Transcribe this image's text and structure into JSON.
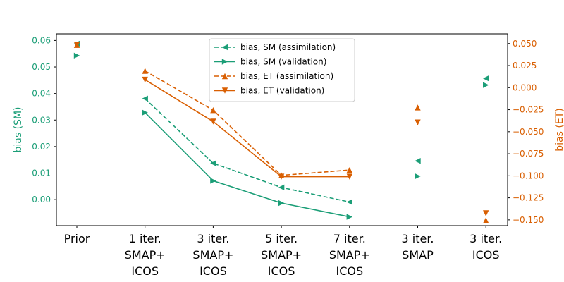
{
  "chart_data": {
    "type": "line",
    "categories": [
      [
        "Prior"
      ],
      [
        "1 iter.",
        "SMAP+",
        "ICOS"
      ],
      [
        "3 iter.",
        "SMAP+",
        "ICOS"
      ],
      [
        "5 iter.",
        "SMAP+",
        "ICOS"
      ],
      [
        "7 iter.",
        "SMAP+",
        "ICOS"
      ],
      [
        "3 iter.",
        "SMAP"
      ],
      [
        "3 iter.",
        "ICOS"
      ]
    ],
    "ylabel_left": "bias (SM)",
    "ylabel_right": "bias (ET)",
    "ylim_left": [
      -0.0098,
      0.0625
    ],
    "ylim_right": [
      -0.1565,
      0.061
    ],
    "yticks_left": [
      "0.00",
      "0.01",
      "0.02",
      "0.03",
      "0.04",
      "0.05",
      "0.06"
    ],
    "yticks_left_values": [
      0.0,
      0.01,
      0.02,
      0.03,
      0.04,
      0.05,
      0.06
    ],
    "yticks_right": [
      "0.050",
      "0.025",
      "0.000",
      "−0.025",
      "−0.050",
      "−0.075",
      "−0.100",
      "−0.125",
      "−0.150"
    ],
    "yticks_right_values": [
      0.05,
      0.025,
      0.0,
      -0.025,
      -0.05,
      -0.075,
      -0.1,
      -0.125,
      -0.15
    ],
    "colors": {
      "sm": "#1b9e77",
      "et": "#d95f02"
    },
    "legend_position": "top-center",
    "series": [
      {
        "name": "bias, SM (assimilation)",
        "axis": "left",
        "color": "#1b9e77",
        "dash": true,
        "marker": "triangle-left",
        "values": [
          0.0588,
          0.0381,
          0.0137,
          0.0046,
          -0.0009,
          0.0146,
          0.0457
        ],
        "connected": [
          false,
          true,
          true,
          true,
          true,
          false,
          false
        ]
      },
      {
        "name": "bias, SM (validation)",
        "axis": "left",
        "color": "#1b9e77",
        "dash": false,
        "marker": "triangle-right",
        "values": [
          0.0543,
          0.0328,
          0.0071,
          -0.0013,
          -0.0065,
          0.0088,
          0.0432
        ],
        "connected": [
          false,
          true,
          true,
          true,
          true,
          false,
          false
        ]
      },
      {
        "name": "bias, ET (assimilation)",
        "axis": "right",
        "color": "#d95f02",
        "dash": true,
        "marker": "triangle-up",
        "values": [
          0.0485,
          0.019,
          -0.0255,
          -0.0995,
          -0.0935,
          -0.0225,
          -0.1505
        ],
        "connected": [
          false,
          true,
          true,
          true,
          true,
          false,
          false
        ]
      },
      {
        "name": "bias, ET (validation)",
        "axis": "right",
        "color": "#d95f02",
        "dash": false,
        "marker": "triangle-down",
        "values": [
          0.0485,
          0.009,
          -0.0385,
          -0.101,
          -0.101,
          -0.0395,
          -0.1425
        ],
        "connected": [
          false,
          true,
          true,
          true,
          true,
          false,
          false
        ]
      }
    ]
  }
}
